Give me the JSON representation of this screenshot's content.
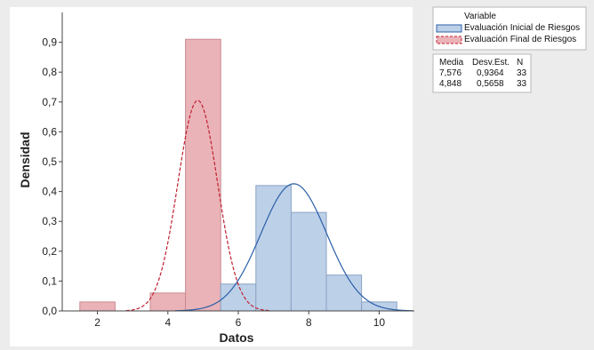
{
  "chart_data": {
    "type": "bar",
    "xlabel": "Datos",
    "ylabel": "Densidad",
    "xlim": [
      1,
      11
    ],
    "ylim": [
      0,
      1
    ],
    "xticks": [
      "2",
      "4",
      "6",
      "8",
      "10"
    ],
    "yticks": [
      "0,0",
      "0,1",
      "0,2",
      "0,3",
      "0,4",
      "0,5",
      "0,6",
      "0,7",
      "0,8",
      "0,9"
    ],
    "legend": {
      "title": "Variable",
      "position": "top-right",
      "entries": [
        "Evaluación Inicial de Riesgos",
        "Evaluación Final de Riesgos"
      ]
    },
    "stats_table": {
      "headers": [
        "Media",
        "Desv.Est.",
        "N"
      ],
      "rows": [
        [
          "7,576",
          "0,9364",
          "33"
        ],
        [
          "4,848",
          "0,5658",
          "33"
        ]
      ]
    },
    "series": [
      {
        "name": "Evaluación Inicial de Riesgos",
        "color": "#bcd0e8",
        "edge": "#8aa2c4",
        "curve_color": "#2b5fa8",
        "curve_dash": "solid",
        "mean": 7.576,
        "sd": 0.9364,
        "bins": [
          {
            "x0": 5.5,
            "x1": 6.5,
            "density": 0.09
          },
          {
            "x0": 6.5,
            "x1": 7.5,
            "density": 0.42
          },
          {
            "x0": 7.5,
            "x1": 8.5,
            "density": 0.33
          },
          {
            "x0": 8.5,
            "x1": 9.5,
            "density": 0.12
          },
          {
            "x0": 9.5,
            "x1": 10.5,
            "density": 0.03
          }
        ]
      },
      {
        "name": "Evaluación Final de Riesgos",
        "color": "#eab3b8",
        "edge": "#c98a90",
        "curve_color": "#c02030",
        "curve_dash": "dashed",
        "mean": 4.848,
        "sd": 0.5658,
        "bins": [
          {
            "x0": 1.5,
            "x1": 2.5,
            "density": 0.03
          },
          {
            "x0": 3.5,
            "x1": 4.5,
            "density": 0.06
          },
          {
            "x0": 4.5,
            "x1": 5.5,
            "density": 0.91
          }
        ]
      }
    ]
  }
}
